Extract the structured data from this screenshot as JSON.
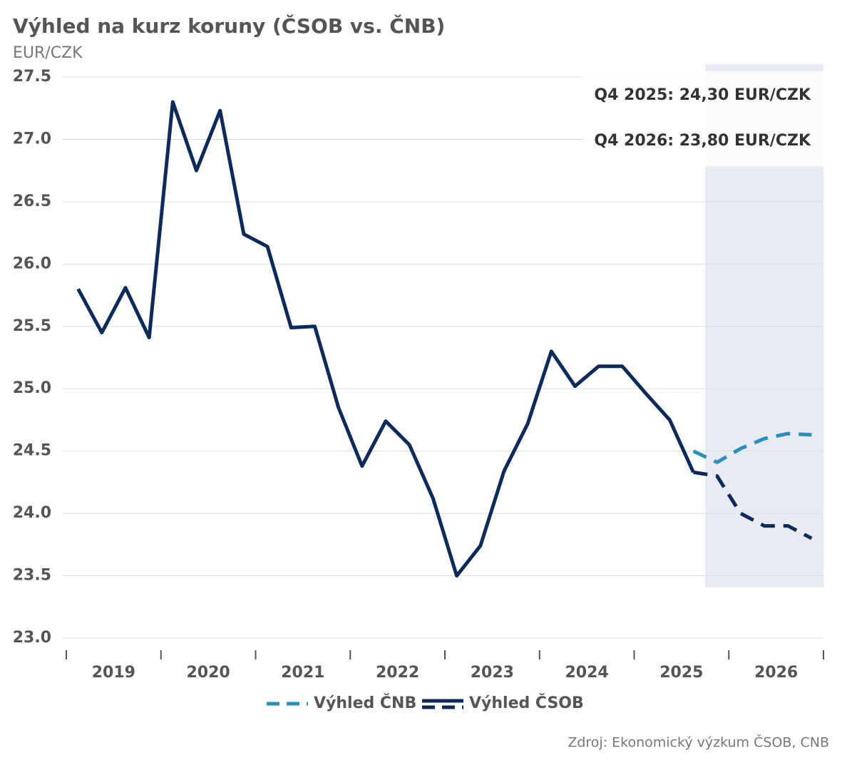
{
  "chart_data": {
    "type": "line",
    "title": "Výhled na kurz koruny (ČSOB vs. ČNB)",
    "subtitle": "EUR/CZK",
    "years": [
      "2019",
      "2020",
      "2021",
      "2022",
      "2023",
      "2024",
      "2025",
      "2026"
    ],
    "series": [
      {
        "name": "Výhled ČNB",
        "color": "#2a8fba",
        "dashed_from": 26,
        "values": [
          null,
          null,
          null,
          null,
          null,
          null,
          null,
          null,
          null,
          null,
          null,
          null,
          null,
          null,
          null,
          null,
          null,
          null,
          null,
          null,
          null,
          null,
          null,
          null,
          null,
          null,
          24.5,
          24.41,
          24.52,
          24.6,
          24.64,
          24.63
        ]
      },
      {
        "name": "Výhled ČSOB",
        "color": "#0d2b5a",
        "dashed_from": 26,
        "values": [
          25.8,
          25.45,
          25.81,
          25.41,
          27.3,
          26.75,
          27.23,
          26.24,
          26.14,
          25.49,
          25.5,
          24.85,
          24.38,
          24.74,
          24.55,
          24.12,
          23.5,
          23.74,
          24.34,
          24.72,
          25.3,
          25.02,
          25.18,
          25.18,
          24.96,
          24.75,
          24.33,
          24.3,
          24.0,
          23.9,
          23.9,
          23.8
        ]
      }
    ],
    "ylim": [
      23.0,
      27.5
    ],
    "yticks": [
      {
        "value": 23,
        "label": "23.0"
      },
      23.5,
      {
        "value": 24,
        "label": "24.0"
      },
      24.5,
      {
        "value": 25,
        "label": "25.0"
      },
      25.5,
      {
        "value": 26,
        "label": "26.0"
      },
      26.5,
      {
        "value": 27,
        "label": "27.0"
      },
      27.5
    ],
    "grid": true,
    "forecast_shade": "#e8ebf3",
    "annotations": [
      "Q4 2025: 24,30 EUR/CZK",
      "Q4 2026: 23,80 EUR/CZK"
    ],
    "source": "Zdroj: Ekonomický výzkum ČSOB, CNB"
  }
}
